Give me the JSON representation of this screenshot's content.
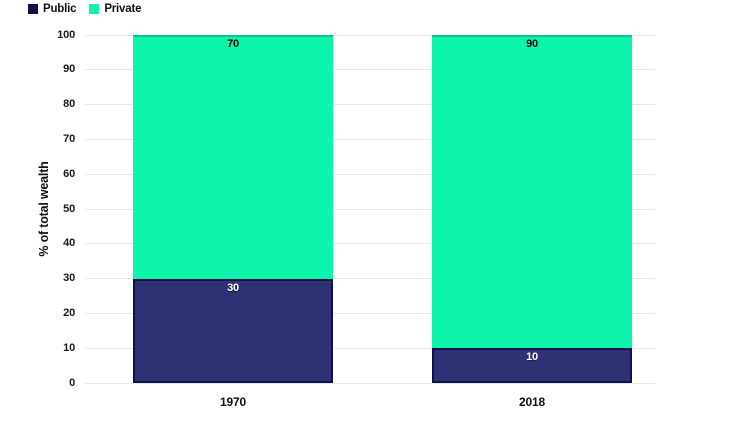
{
  "legend": {
    "position": "top-left",
    "items": [
      {
        "label": "Public",
        "color": "#10104a"
      },
      {
        "label": "Private",
        "color": "#0df5ac"
      }
    ]
  },
  "chart_data": {
    "type": "bar",
    "stacked": true,
    "categories": [
      "1970",
      "2018"
    ],
    "series": [
      {
        "name": "Public",
        "color": "#2e3274",
        "label_color": "#ffffff",
        "values": [
          30,
          10
        ]
      },
      {
        "name": "Private",
        "color": "#0df5ac",
        "label_color": "#000000",
        "values": [
          70,
          90
        ]
      }
    ],
    "title": "",
    "xlabel": "",
    "ylabel": "% of total wealth",
    "ylim": [
      0,
      100
    ],
    "yticks": [
      0,
      10,
      20,
      30,
      40,
      50,
      60,
      70,
      80,
      90,
      100
    ],
    "grid": true,
    "gridline_color": "#e8e8e8",
    "legend_position": "top-left",
    "bar_value_labels": true
  }
}
